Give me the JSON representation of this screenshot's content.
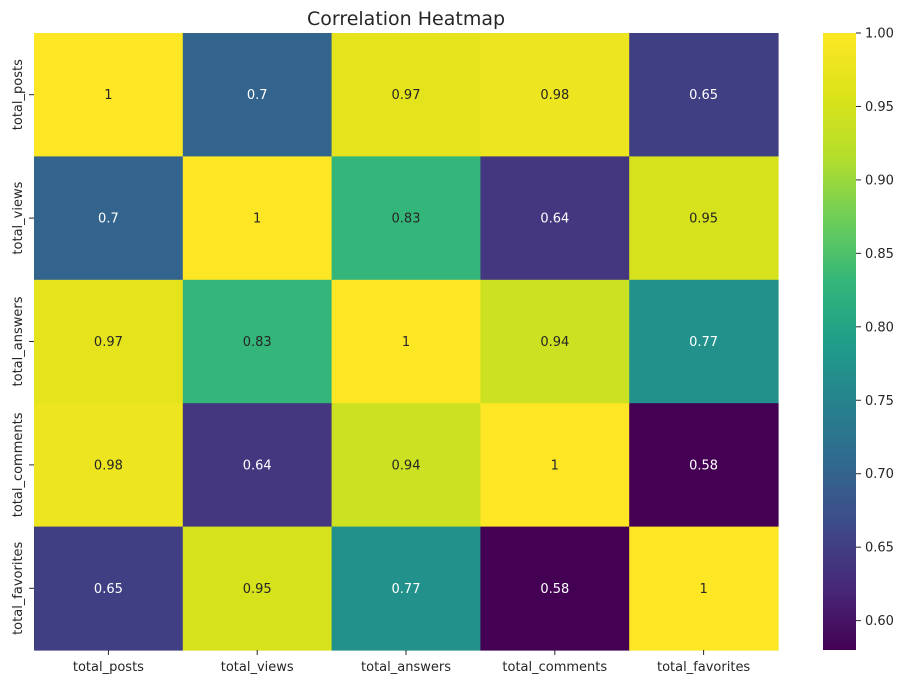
{
  "chart_data": {
    "type": "heatmap",
    "title": "Correlation Heatmap",
    "xlabel": "",
    "ylabel": "",
    "x_categories": [
      "total_posts",
      "total_views",
      "total_answers",
      "total_comments",
      "total_favorites"
    ],
    "y_categories": [
      "total_posts",
      "total_views",
      "total_answers",
      "total_comments",
      "total_favorites"
    ],
    "values": [
      [
        1,
        0.7,
        0.97,
        0.98,
        0.65
      ],
      [
        0.7,
        1,
        0.83,
        0.64,
        0.95
      ],
      [
        0.97,
        0.83,
        1,
        0.94,
        0.77
      ],
      [
        0.98,
        0.64,
        0.94,
        1,
        0.58
      ],
      [
        0.65,
        0.95,
        0.77,
        0.58,
        1
      ]
    ],
    "annotations": [
      [
        "1",
        "0.7",
        "0.97",
        "0.98",
        "0.65"
      ],
      [
        "0.7",
        "1",
        "0.83",
        "0.64",
        "0.95"
      ],
      [
        "0.97",
        "0.83",
        "1",
        "0.94",
        "0.77"
      ],
      [
        "0.98",
        "0.64",
        "0.94",
        "1",
        "0.58"
      ],
      [
        "0.65",
        "0.95",
        "0.77",
        "0.58",
        "1"
      ]
    ],
    "colormap": "viridis",
    "vmin": 0.58,
    "vmax": 1.0,
    "colorbar_ticks": [
      "0.60",
      "0.65",
      "0.70",
      "0.75",
      "0.80",
      "0.85",
      "0.90",
      "0.95",
      "1.00"
    ],
    "colorbar_tick_values": [
      0.6,
      0.65,
      0.7,
      0.75,
      0.8,
      0.85,
      0.9,
      0.95,
      1.0
    ],
    "colorbar_placement": "right",
    "grid": false
  }
}
